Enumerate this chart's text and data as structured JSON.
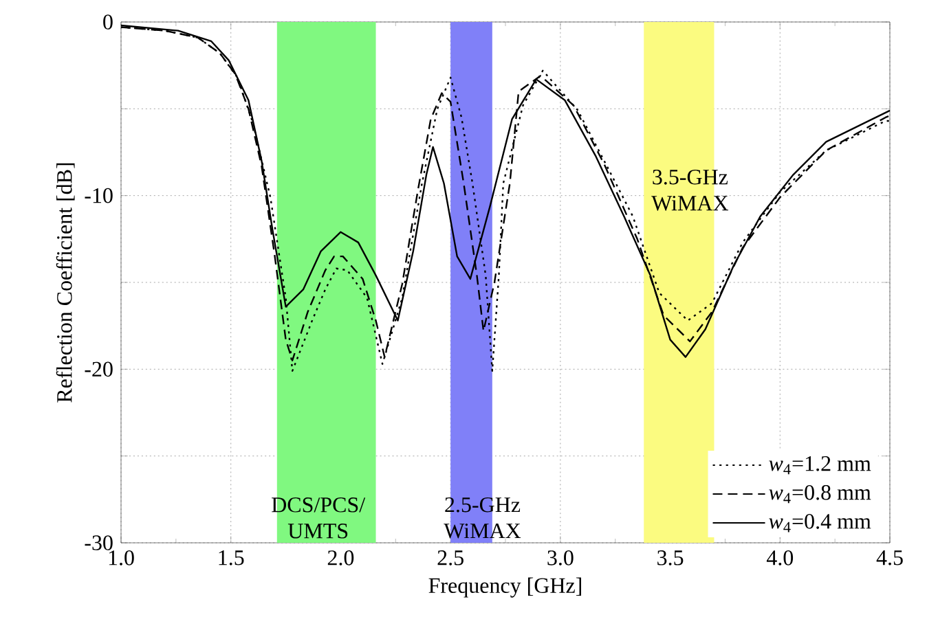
{
  "chart_data": {
    "type": "line",
    "xlabel": "Frequency [GHz]",
    "ylabel": "Reflection Coefficient [dB]",
    "xlim": [
      1.0,
      4.5
    ],
    "ylim": [
      -30,
      0
    ],
    "xticks": [
      {
        "value": 1.0,
        "label": "1.0"
      },
      {
        "value": 1.5,
        "label": "1.5"
      },
      {
        "value": 2.0,
        "label": "2.0"
      },
      {
        "value": 2.5,
        "label": "2.5"
      },
      {
        "value": 3.0,
        "label": "3.0"
      },
      {
        "value": 3.5,
        "label": "3.5"
      },
      {
        "value": 4.0,
        "label": "4.0"
      },
      {
        "value": 4.5,
        "label": "4.5"
      }
    ],
    "yticks": [
      -30,
      {
        "value": -25,
        "label": null
      },
      -20,
      {
        "value": -15,
        "label": null
      },
      -10,
      {
        "value": -5,
        "label": null
      },
      0
    ],
    "grid": true,
    "legend": "bottom right",
    "marker": "none",
    "bands": [
      {
        "axis": "x",
        "from": 1.71,
        "to": 2.16,
        "color": "#80f880",
        "label": "DCS/PCS/ UMTS"
      },
      {
        "axis": "x",
        "from": 2.5,
        "to": 2.69,
        "color": "#8080f8",
        "label": "2.5-GHz WiMAX"
      },
      {
        "axis": "x",
        "from": 3.38,
        "to": 3.7,
        "color": "#fbfb80",
        "label": "3.5-GHz WiMAX"
      }
    ],
    "series": [
      {
        "name": "*w*$_{4}$=1.2 mm",
        "color": "#000000",
        "line_style": "dotted",
        "x": [
          1.0,
          1.2,
          1.35,
          1.45,
          1.53,
          1.6,
          1.68,
          1.75,
          1.78,
          1.87,
          1.93,
          1.98,
          2.03,
          2.12,
          2.19,
          2.28,
          2.37,
          2.44,
          2.5,
          2.55,
          2.6,
          2.66,
          2.69,
          2.72,
          2.74,
          2.83,
          2.92,
          3.08,
          3.22,
          3.33,
          3.45,
          3.58,
          3.69,
          3.83,
          4.0,
          4.21,
          4.48,
          4.5
        ],
        "values": [
          -0.3,
          -0.5,
          -0.9,
          -1.8,
          -3.2,
          -5.8,
          -10.1,
          -15.9,
          -20.1,
          -17.2,
          -15.4,
          -14.2,
          -14.3,
          -15.9,
          -19.7,
          -15.9,
          -9.3,
          -5.0,
          -3.2,
          -5.5,
          -9.3,
          -14.6,
          -20.1,
          -14.6,
          -9.3,
          -4.8,
          -2.8,
          -5.1,
          -8.5,
          -11.2,
          -15.6,
          -17.2,
          -16.2,
          -12.7,
          -9.8,
          -7.4,
          -5.7,
          -5.7
        ]
      },
      {
        "name": "*w*$_{4}$=0.8 mm",
        "color": "#000000",
        "line_style": "dashed",
        "x": [
          1.0,
          1.2,
          1.35,
          1.45,
          1.52,
          1.58,
          1.64,
          1.7,
          1.75,
          1.78,
          1.85,
          1.93,
          1.97,
          2.01,
          2.1,
          2.16,
          2.2,
          2.28,
          2.35,
          2.41,
          2.46,
          2.5,
          2.56,
          2.62,
          2.65,
          2.7,
          2.77,
          2.81,
          2.91,
          3.06,
          3.2,
          3.35,
          3.47,
          3.59,
          3.69,
          3.83,
          4.0,
          4.21,
          4.48,
          4.5
        ],
        "values": [
          -0.3,
          -0.5,
          -0.9,
          -1.8,
          -3.0,
          -5.0,
          -8.3,
          -13.5,
          -18.3,
          -19.5,
          -16.7,
          -14.3,
          -13.5,
          -13.5,
          -14.8,
          -17.2,
          -19.3,
          -15.1,
          -9.8,
          -5.6,
          -4.1,
          -4.6,
          -9.3,
          -14.6,
          -17.8,
          -15.0,
          -9.3,
          -4.0,
          -3.1,
          -4.8,
          -8.2,
          -12.5,
          -16.9,
          -18.4,
          -16.7,
          -13.0,
          -10.1,
          -7.4,
          -5.5,
          -5.4
        ]
      },
      {
        "name": "*w*$_{4}$=0.4 mm",
        "color": "#000000",
        "line_style": "solid",
        "x": [
          1.0,
          1.26,
          1.41,
          1.49,
          1.58,
          1.64,
          1.69,
          1.75,
          1.83,
          1.91,
          2.0,
          2.08,
          2.16,
          2.26,
          2.33,
          2.39,
          2.42,
          2.47,
          2.53,
          2.59,
          2.68,
          2.78,
          2.89,
          3.02,
          3.16,
          3.29,
          3.41,
          3.5,
          3.57,
          3.66,
          3.79,
          3.91,
          4.06,
          4.21,
          4.5
        ],
        "values": [
          -0.2,
          -0.5,
          -1.1,
          -2.2,
          -4.5,
          -8.0,
          -12.0,
          -16.4,
          -15.4,
          -13.2,
          -12.1,
          -12.7,
          -14.6,
          -17.2,
          -13.2,
          -8.8,
          -7.2,
          -9.3,
          -13.5,
          -14.8,
          -10.6,
          -5.6,
          -3.3,
          -4.5,
          -7.7,
          -11.2,
          -14.6,
          -18.3,
          -19.3,
          -17.7,
          -14.0,
          -11.2,
          -8.8,
          -6.9,
          -5.1
        ]
      }
    ]
  }
}
